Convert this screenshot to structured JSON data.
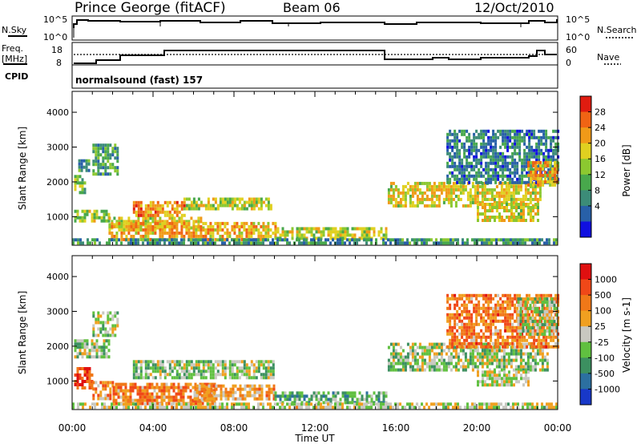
{
  "header": {
    "station": "Prince George (fitACF)",
    "beam": "Beam 06",
    "date": "12/Oct/2010"
  },
  "noise_panel": {
    "left_label": "N.Sky",
    "right_label": "N.Search",
    "left_ticks": [
      "10^5",
      "10^0"
    ],
    "right_ticks": [
      "10^5",
      "10^0"
    ]
  },
  "freq_panel": {
    "left_label_1": "Freq.",
    "left_label_2": "[MHz]",
    "right_label": "Nave",
    "left_ticks": [
      "18",
      "8"
    ],
    "right_ticks": [
      "60",
      "0"
    ]
  },
  "cpid_panel": {
    "label": "CPID",
    "program": "normalsound (fast) 157"
  },
  "chart_data": [
    {
      "type": "heatmap",
      "quantity": "Power",
      "ylabel": "Slant Range [km]",
      "xlabel": "",
      "x_ticks": [
        "00:00",
        "04:00",
        "08:00",
        "12:00",
        "16:00",
        "20:00",
        "00:00"
      ],
      "xlim_hours": [
        0,
        24
      ],
      "y_ticks": [
        1000,
        2000,
        3000,
        4000
      ],
      "ylim": [
        180,
        4600
      ],
      "colorbar": {
        "label": "Power [dB]",
        "ticks": [
          "28",
          "24",
          "20",
          "16",
          "12",
          "8",
          "4"
        ],
        "colors": [
          "#1010e0",
          "#2860a8",
          "#3c8c78",
          "#48a84c",
          "#8cc830",
          "#e0d020",
          "#f09a18",
          "#f06414",
          "#e01c10"
        ]
      },
      "regions": [
        {
          "t0": 0.1,
          "t1": 0.6,
          "r0": 1700,
          "r1": 2200,
          "level": 0.45
        },
        {
          "t0": 0.3,
          "t1": 0.8,
          "r0": 2300,
          "r1": 2650,
          "level": 0.3
        },
        {
          "t0": 1.0,
          "t1": 2.3,
          "r0": 2200,
          "r1": 3100,
          "level": 0.35
        },
        {
          "t0": 0.1,
          "t1": 1.8,
          "r0": 900,
          "r1": 1200,
          "level": 0.5
        },
        {
          "t0": 1.8,
          "t1": 6.5,
          "r0": 700,
          "r1": 1000,
          "level": 0.6
        },
        {
          "t0": 3.0,
          "t1": 5.5,
          "r0": 1050,
          "r1": 1450,
          "level": 0.75
        },
        {
          "t0": 5.5,
          "t1": 9.8,
          "r0": 1200,
          "r1": 1550,
          "level": 0.55
        },
        {
          "t0": 1.8,
          "t1": 10.0,
          "r0": 380,
          "r1": 850,
          "level": 0.7
        },
        {
          "t0": 10.0,
          "t1": 15.5,
          "r0": 380,
          "r1": 700,
          "level": 0.55
        },
        {
          "t0": 15.6,
          "t1": 23.2,
          "r0": 1350,
          "r1": 2000,
          "level": 0.6
        },
        {
          "t0": 20.0,
          "t1": 23.0,
          "r0": 900,
          "r1": 1400,
          "level": 0.6
        },
        {
          "t0": 18.5,
          "t1": 24.0,
          "r0": 2000,
          "r1": 3500,
          "level": 0.25
        },
        {
          "t0": 22.5,
          "t1": 24.0,
          "r0": 1900,
          "r1": 2600,
          "level": 0.7
        },
        {
          "t0": 0.0,
          "t1": 24.0,
          "r0": 200,
          "r1": 380,
          "level": 0.3
        }
      ]
    },
    {
      "type": "heatmap",
      "quantity": "Velocity",
      "ylabel": "Slant Range [km]",
      "xlabel": "Time UT",
      "x_ticks": [
        "00:00",
        "04:00",
        "08:00",
        "12:00",
        "16:00",
        "20:00",
        "00:00"
      ],
      "xlim_hours": [
        0,
        24
      ],
      "y_ticks": [
        1000,
        2000,
        3000,
        4000
      ],
      "ylim": [
        180,
        4600
      ],
      "colorbar": {
        "label": "Velocity [m s-1]",
        "ticks": [
          "1000",
          "500",
          "100",
          "25",
          "-25",
          "-100",
          "-500",
          "-1000"
        ],
        "colors": [
          "#1838c8",
          "#2c70a0",
          "#3c9060",
          "#60c040",
          "#c8c8c0",
          "#f0a020",
          "#f07818",
          "#f04818",
          "#e01010"
        ]
      },
      "regions": [
        {
          "t0": 0.1,
          "t1": 1.8,
          "r0": 1700,
          "r1": 2200,
          "level": 0.44
        },
        {
          "t0": 1.0,
          "t1": 2.3,
          "r0": 2300,
          "r1": 3000,
          "level": 0.44
        },
        {
          "t0": 0.1,
          "t1": 1.0,
          "r0": 800,
          "r1": 1400,
          "level": 0.85
        },
        {
          "t0": 1.0,
          "t1": 2.0,
          "r0": 500,
          "r1": 1000,
          "level": 0.7
        },
        {
          "t0": 2.0,
          "t1": 7.0,
          "r0": 380,
          "r1": 950,
          "level": 0.7
        },
        {
          "t0": 3.0,
          "t1": 10.0,
          "r0": 1100,
          "r1": 1600,
          "level": 0.44
        },
        {
          "t0": 6.0,
          "t1": 10.0,
          "r0": 500,
          "r1": 900,
          "level": 0.62
        },
        {
          "t0": 10.0,
          "t1": 15.5,
          "r0": 380,
          "r1": 700,
          "level": 0.33
        },
        {
          "t0": 15.6,
          "t1": 23.5,
          "r0": 1300,
          "r1": 2100,
          "level": 0.44
        },
        {
          "t0": 18.5,
          "t1": 24.0,
          "r0": 2000,
          "r1": 3500,
          "level": 0.72
        },
        {
          "t0": 22.0,
          "t1": 24.0,
          "r0": 2300,
          "r1": 3400,
          "level": 0.44
        },
        {
          "t0": 20.0,
          "t1": 22.5,
          "r0": 900,
          "r1": 1300,
          "level": 0.5
        },
        {
          "t0": 0.0,
          "t1": 24.0,
          "r0": 200,
          "r1": 380,
          "level": 0.5
        }
      ]
    }
  ]
}
